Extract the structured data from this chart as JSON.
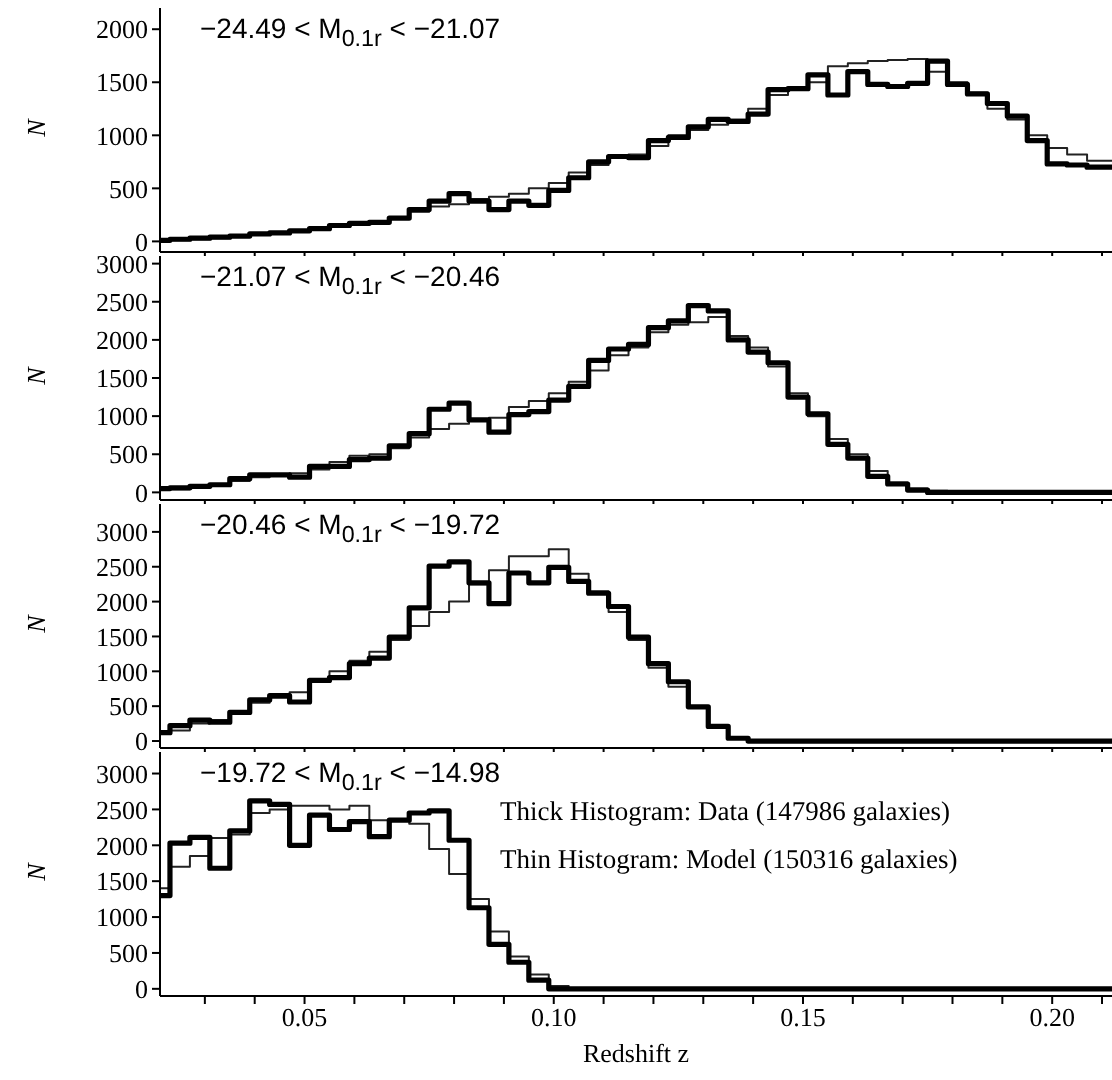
{
  "chart_data": [
    {
      "type": "histogram",
      "ylabel": "N",
      "annotations": [
        "−24.49 < M$_{0.1r}$ < −21.07"
      ],
      "tick_labels": "y",
      "xlim": [
        0.021,
        0.212
      ],
      "ylim": [
        -100,
        2200
      ],
      "yticks": [
        0,
        500,
        1000,
        1500,
        2000
      ],
      "xticks": [
        {
          "value": 0.03,
          "label": null
        },
        {
          "value": 0.04,
          "label": null
        },
        {
          "value": 0.05,
          "label": null
        },
        {
          "value": 0.06,
          "label": null
        },
        {
          "value": 0.07,
          "label": null
        },
        {
          "value": 0.08,
          "label": null
        },
        {
          "value": 0.09,
          "label": null
        },
        {
          "value": 0.1,
          "label": null
        },
        {
          "value": 0.11,
          "label": null
        },
        {
          "value": 0.12,
          "label": null
        },
        {
          "value": 0.13,
          "label": null
        },
        {
          "value": 0.14,
          "label": null
        },
        {
          "value": 0.15,
          "label": null
        },
        {
          "value": 0.16,
          "label": null
        },
        {
          "value": 0.17,
          "label": null
        },
        {
          "value": 0.18,
          "label": null
        },
        {
          "value": 0.19,
          "label": null
        },
        {
          "value": 0.2,
          "label": null
        },
        {
          "value": 0.21,
          "label": null
        }
      ],
      "bins": [
        0.021,
        0.023,
        0.027,
        0.031,
        0.035,
        0.039,
        0.043,
        0.047,
        0.051,
        0.055,
        0.059,
        0.063,
        0.067,
        0.071,
        0.075,
        0.079,
        0.083,
        0.087,
        0.091,
        0.095,
        0.099,
        0.103,
        0.107,
        0.111,
        0.115,
        0.119,
        0.123,
        0.127,
        0.131,
        0.135,
        0.139,
        0.143,
        0.147,
        0.151,
        0.155,
        0.159,
        0.163,
        0.167,
        0.171,
        0.175,
        0.179,
        0.183,
        0.187,
        0.191,
        0.195,
        0.199,
        0.203,
        0.207,
        0.212
      ],
      "series": [
        {
          "color": "#000000",
          "values": [
            10,
            20,
            30,
            40,
            50,
            70,
            80,
            100,
            120,
            150,
            170,
            180,
            220,
            300,
            380,
            450,
            380,
            300,
            380,
            340,
            480,
            600,
            750,
            800,
            790,
            950,
            980,
            1080,
            1150,
            1130,
            1200,
            1430,
            1440,
            1570,
            1380,
            1600,
            1480,
            1460,
            1490,
            1700,
            1480,
            1390,
            1300,
            1180,
            950,
            730,
            720,
            700
          ]
        },
        {
          "color": "#222222",
          "values": [
            10,
            10,
            20,
            30,
            50,
            60,
            80,
            100,
            120,
            140,
            160,
            190,
            230,
            280,
            330,
            350,
            400,
            420,
            450,
            500,
            550,
            650,
            720,
            790,
            820,
            900,
            1000,
            1050,
            1100,
            1150,
            1250,
            1380,
            1450,
            1500,
            1650,
            1680,
            1700,
            1710,
            1720,
            1600,
            1500,
            1400,
            1250,
            1150,
            1000,
            880,
            820,
            760
          ]
        }
      ]
    },
    {
      "type": "histogram",
      "ylabel": "N",
      "annotations": [
        "−21.07 < M$_{0.1r}$ < −20.46"
      ],
      "tick_labels": "y",
      "xlim": [
        0.021,
        0.212
      ],
      "ylim": [
        -100,
        3100
      ],
      "yticks": [
        0,
        500,
        1000,
        1500,
        2000,
        2500,
        3000
      ],
      "xticks": [
        {
          "value": 0.03,
          "label": null
        },
        {
          "value": 0.04,
          "label": null
        },
        {
          "value": 0.05,
          "label": null
        },
        {
          "value": 0.06,
          "label": null
        },
        {
          "value": 0.07,
          "label": null
        },
        {
          "value": 0.08,
          "label": null
        },
        {
          "value": 0.09,
          "label": null
        },
        {
          "value": 0.1,
          "label": null
        },
        {
          "value": 0.11,
          "label": null
        },
        {
          "value": 0.12,
          "label": null
        },
        {
          "value": 0.13,
          "label": null
        },
        {
          "value": 0.14,
          "label": null
        },
        {
          "value": 0.15,
          "label": null
        },
        {
          "value": 0.16,
          "label": null
        },
        {
          "value": 0.17,
          "label": null
        },
        {
          "value": 0.18,
          "label": null
        },
        {
          "value": 0.19,
          "label": null
        },
        {
          "value": 0.2,
          "label": null
        },
        {
          "value": 0.21,
          "label": null
        }
      ],
      "bins": [
        0.021,
        0.023,
        0.027,
        0.031,
        0.035,
        0.039,
        0.043,
        0.047,
        0.051,
        0.055,
        0.059,
        0.063,
        0.067,
        0.071,
        0.075,
        0.079,
        0.083,
        0.087,
        0.091,
        0.095,
        0.099,
        0.103,
        0.107,
        0.111,
        0.115,
        0.119,
        0.123,
        0.127,
        0.131,
        0.135,
        0.139,
        0.143,
        0.147,
        0.151,
        0.155,
        0.159,
        0.163,
        0.167,
        0.171,
        0.175,
        0.179,
        0.183,
        0.187,
        0.191,
        0.195,
        0.199,
        0.203,
        0.207,
        0.212
      ],
      "series": [
        {
          "color": "#000000",
          "values": [
            50,
            60,
            80,
            100,
            180,
            230,
            230,
            200,
            340,
            340,
            430,
            450,
            610,
            770,
            1090,
            1170,
            950,
            790,
            1020,
            1060,
            1210,
            1390,
            1730,
            1880,
            1940,
            2160,
            2250,
            2450,
            2380,
            2000,
            1840,
            1700,
            1250,
            1030,
            630,
            450,
            210,
            110,
            30,
            0,
            0,
            0,
            0,
            0,
            0,
            0,
            0,
            0
          ]
        },
        {
          "color": "#222222",
          "values": [
            30,
            40,
            60,
            100,
            150,
            200,
            230,
            250,
            300,
            400,
            480,
            500,
            580,
            720,
            830,
            900,
            950,
            980,
            1120,
            1200,
            1300,
            1450,
            1600,
            1800,
            1900,
            2100,
            2200,
            2230,
            2300,
            2050,
            1900,
            1650,
            1300,
            1000,
            700,
            500,
            280,
            130,
            50,
            20,
            0,
            0,
            0,
            0,
            0,
            0,
            0,
            0
          ]
        }
      ]
    },
    {
      "type": "histogram",
      "ylabel": "N",
      "annotations": [
        "−20.46 < M$_{0.1r}$ < −19.72"
      ],
      "tick_labels": "y",
      "xlim": [
        0.021,
        0.212
      ],
      "ylim": [
        -100,
        3400
      ],
      "yticks": [
        0,
        500,
        1000,
        1500,
        2000,
        2500,
        3000
      ],
      "xticks": [
        {
          "value": 0.03,
          "label": null
        },
        {
          "value": 0.04,
          "label": null
        },
        {
          "value": 0.05,
          "label": null
        },
        {
          "value": 0.06,
          "label": null
        },
        {
          "value": 0.07,
          "label": null
        },
        {
          "value": 0.08,
          "label": null
        },
        {
          "value": 0.09,
          "label": null
        },
        {
          "value": 0.1,
          "label": null
        },
        {
          "value": 0.11,
          "label": null
        },
        {
          "value": 0.12,
          "label": null
        },
        {
          "value": 0.13,
          "label": null
        },
        {
          "value": 0.14,
          "label": null
        },
        {
          "value": 0.15,
          "label": null
        },
        {
          "value": 0.16,
          "label": null
        },
        {
          "value": 0.17,
          "label": null
        },
        {
          "value": 0.18,
          "label": null
        },
        {
          "value": 0.19,
          "label": null
        },
        {
          "value": 0.2,
          "label": null
        },
        {
          "value": 0.21,
          "label": null
        }
      ],
      "bins": [
        0.021,
        0.023,
        0.027,
        0.031,
        0.035,
        0.039,
        0.043,
        0.047,
        0.051,
        0.055,
        0.059,
        0.063,
        0.067,
        0.071,
        0.075,
        0.079,
        0.083,
        0.087,
        0.091,
        0.095,
        0.099,
        0.103,
        0.107,
        0.111,
        0.115,
        0.119,
        0.123,
        0.127,
        0.131,
        0.135,
        0.139,
        0.143,
        0.147,
        0.151,
        0.155,
        0.159,
        0.163,
        0.167,
        0.171,
        0.175,
        0.179,
        0.183,
        0.187,
        0.191,
        0.195,
        0.199,
        0.203,
        0.207,
        0.212
      ],
      "series": [
        {
          "color": "#000000",
          "values": [
            120,
            220,
            300,
            270,
            410,
            590,
            650,
            560,
            870,
            910,
            1110,
            1190,
            1490,
            1910,
            2510,
            2570,
            2270,
            1970,
            2410,
            2270,
            2490,
            2290,
            2120,
            1930,
            1490,
            1110,
            850,
            490,
            210,
            40,
            0,
            0,
            0,
            0,
            0,
            0,
            0,
            0,
            0,
            0,
            0,
            0,
            0,
            0,
            0,
            0,
            0,
            0
          ]
        },
        {
          "color": "#222222",
          "values": [
            100,
            150,
            250,
            300,
            400,
            550,
            620,
            700,
            850,
            1000,
            1150,
            1280,
            1450,
            1650,
            1850,
            2000,
            2250,
            2450,
            2650,
            2650,
            2750,
            2400,
            2150,
            1850,
            1450,
            1050,
            780,
            480,
            220,
            50,
            0,
            0,
            0,
            0,
            0,
            0,
            0,
            0,
            0,
            0,
            0,
            0,
            0,
            0,
            0,
            0,
            0,
            0
          ]
        }
      ]
    },
    {
      "type": "histogram",
      "ylabel": "N",
      "xlabel": "Redshift z",
      "annotations": [
        "−19.72 < M$_{0.1r}$ < −14.98",
        "Thick Histogram: Data (147986 galaxies)",
        "Thin Histogram: Model (150316 galaxies)"
      ],
      "xlim": [
        0.021,
        0.212
      ],
      "ylim": [
        -100,
        3300
      ],
      "yticks": [
        0,
        500,
        1000,
        1500,
        2000,
        2500,
        3000
      ],
      "xticks": [
        {
          "value": 0.03,
          "label": null
        },
        {
          "value": 0.04,
          "label": null
        },
        {
          "value": 0.05,
          "label": "0.05"
        },
        {
          "value": 0.06,
          "label": null
        },
        {
          "value": 0.07,
          "label": null
        },
        {
          "value": 0.08,
          "label": null
        },
        {
          "value": 0.09,
          "label": null
        },
        {
          "value": 0.1,
          "label": "0.10"
        },
        {
          "value": 0.11,
          "label": null
        },
        {
          "value": 0.12,
          "label": null
        },
        {
          "value": 0.13,
          "label": null
        },
        {
          "value": 0.14,
          "label": null
        },
        {
          "value": 0.15,
          "label": "0.15"
        },
        {
          "value": 0.16,
          "label": null
        },
        {
          "value": 0.17,
          "label": null
        },
        {
          "value": 0.18,
          "label": null
        },
        {
          "value": 0.19,
          "label": null
        },
        {
          "value": 0.2,
          "label": "0.20"
        },
        {
          "value": 0.21,
          "label": null
        }
      ],
      "bins": [
        0.021,
        0.023,
        0.027,
        0.031,
        0.035,
        0.039,
        0.043,
        0.047,
        0.051,
        0.055,
        0.059,
        0.063,
        0.067,
        0.071,
        0.075,
        0.079,
        0.083,
        0.087,
        0.091,
        0.095,
        0.099,
        0.103,
        0.107,
        0.111,
        0.115,
        0.119,
        0.123,
        0.127,
        0.131,
        0.135,
        0.139,
        0.143,
        0.147,
        0.151,
        0.155,
        0.159,
        0.163,
        0.167,
        0.171,
        0.175,
        0.179,
        0.183,
        0.187,
        0.191,
        0.195,
        0.199,
        0.203,
        0.207,
        0.212
      ],
      "series": [
        {
          "color": "#000000",
          "values": [
            1300,
            2030,
            2110,
            1680,
            2200,
            2620,
            2570,
            2000,
            2420,
            2220,
            2330,
            2120,
            2350,
            2450,
            2480,
            2070,
            1130,
            620,
            370,
            120,
            0,
            0,
            0,
            0,
            0,
            0,
            0,
            0,
            0,
            0,
            0,
            0,
            0,
            0,
            0,
            0,
            0,
            0,
            0,
            0,
            0,
            0,
            0,
            0,
            0,
            0,
            0,
            0
          ]
        },
        {
          "color": "#222222",
          "values": [
            1400,
            1700,
            1850,
            2100,
            2150,
            2450,
            2500,
            2550,
            2550,
            2500,
            2550,
            2350,
            2350,
            2300,
            1950,
            1600,
            1250,
            800,
            450,
            200,
            40,
            0,
            0,
            0,
            0,
            0,
            0,
            0,
            0,
            0,
            0,
            0,
            0,
            0,
            0,
            0,
            0,
            0,
            0,
            0,
            0,
            0,
            0,
            0,
            0,
            0,
            0,
            0
          ]
        }
      ]
    }
  ]
}
